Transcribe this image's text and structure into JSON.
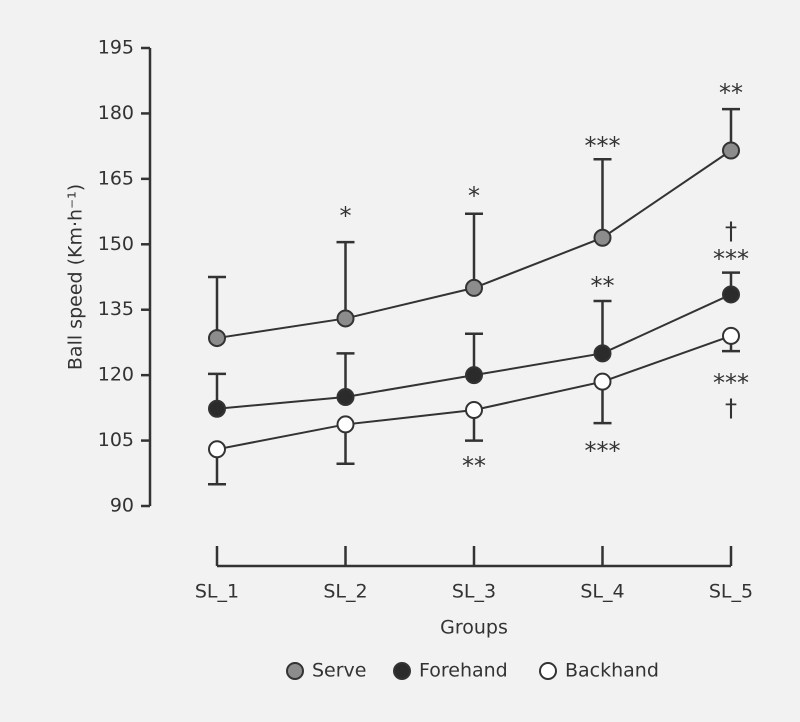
{
  "chart_data": {
    "type": "line",
    "x_label": "Groups",
    "y_label": "Ball speed (Km·h⁻¹)",
    "categories": [
      "SL_1",
      "SL_2",
      "SL_3",
      "SL_4",
      "SL_5"
    ],
    "ylim": [
      90,
      195
    ],
    "yticks": [
      90,
      105,
      120,
      135,
      150,
      165,
      180,
      195
    ],
    "series": [
      {
        "name": "Serve",
        "color": "#8c8c8c",
        "values": [
          128.5,
          133,
          140,
          151.5,
          171.5
        ],
        "errors": [
          14,
          17.5,
          17,
          18,
          9.5
        ],
        "error_direction": "up"
      },
      {
        "name": "Forehand",
        "color": "#2b2b2b",
        "values": [
          112.3,
          115,
          120,
          125,
          138.5
        ],
        "errors": [
          8,
          10,
          9.5,
          12,
          5
        ],
        "error_direction": "up"
      },
      {
        "name": "Backhand",
        "color": "#ffffff",
        "values": [
          103,
          108.7,
          112,
          118.5,
          129
        ],
        "errors": [
          8,
          9,
          7,
          9.5,
          3.5
        ],
        "error_direction": "down"
      }
    ],
    "annotations": [
      {
        "category": "SL_2",
        "text": "*"
      },
      {
        "category": "SL_3",
        "text": "*"
      },
      {
        "category": "SL_4",
        "text": "***"
      },
      {
        "category": "SL_5",
        "text": "**"
      },
      {
        "category": "SL_4",
        "text": "**"
      },
      {
        "category": "SL_5",
        "text": "†"
      },
      {
        "category": "SL_5",
        "text": "***"
      },
      {
        "category": "SL_3",
        "text": "**"
      },
      {
        "category": "SL_4",
        "text": "***"
      },
      {
        "category": "SL_5",
        "text": "***"
      },
      {
        "category": "SL_5",
        "text": "†"
      }
    ],
    "legend": "bottom"
  }
}
